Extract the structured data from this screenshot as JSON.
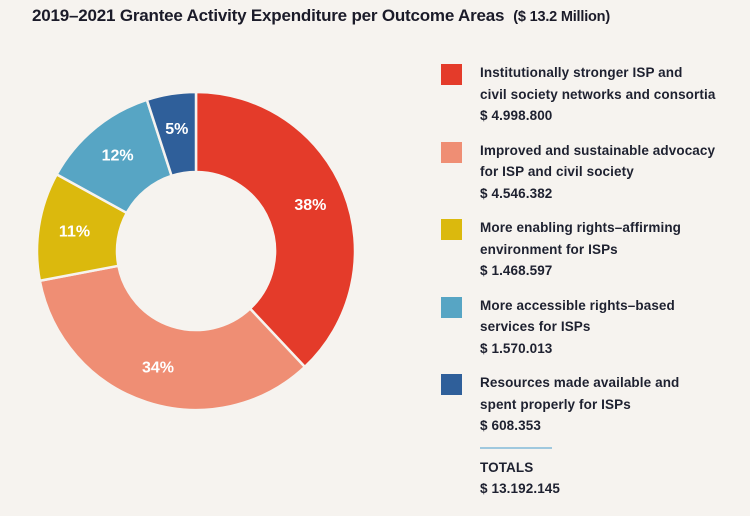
{
  "page": {
    "background_color": "#f6f3ef",
    "text_color": "#1b1b29"
  },
  "title": {
    "main": "2019–2021 Grantee Activity Expenditure per Outcome Areas",
    "note": "($ 13.2 Million)"
  },
  "chart_data": {
    "type": "pie",
    "variant": "donut",
    "title": "2019–2021 Grantee Activity Expenditure per Outcome Areas ($ 13.2 Million)",
    "direction": "clockwise",
    "start_angle_deg": 0,
    "inner_radius_ratio": 0.5,
    "slices": [
      {
        "label": "Institutionally stronger ISP and civil society networks and consortia",
        "amount": 4998800,
        "percent": 38,
        "color": "#e43b2a"
      },
      {
        "label": "Improved and sustainable advocacy for ISP and civil society",
        "amount": 4546382,
        "percent": 34,
        "color": "#ef8e74"
      },
      {
        "label": "More enabling rights–affirming environment for ISPs",
        "amount": 1468597,
        "percent": 11,
        "color": "#dbb90d"
      },
      {
        "label": "More accessible rights–based services for ISPs",
        "amount": 1570013,
        "percent": 12,
        "color": "#57a5c4"
      },
      {
        "label": "Resources made available and spent properly for ISPs",
        "amount": 608353,
        "percent": 5,
        "color": "#2f5f9a"
      }
    ],
    "total": 13192145,
    "gap_color": "#f6f3ef",
    "percent_label_color": "#ffffff"
  },
  "legend": {
    "divider_color": "#9fc8de",
    "items": [
      {
        "lines": [
          "Institutionally stronger ISP and",
          "civil society networks and consortia"
        ],
        "amount": "$ 4.998.800",
        "color": "#e43b2a"
      },
      {
        "lines": [
          "Improved and sustainable advocacy",
          "for ISP and civil society"
        ],
        "amount": "$ 4.546.382",
        "color": "#ef8e74"
      },
      {
        "lines": [
          "More enabling rights–affirming",
          "environment for ISPs"
        ],
        "amount": "$ 1.468.597",
        "color": "#dbb90d"
      },
      {
        "lines": [
          "More accessible rights–based",
          "services for ISPs"
        ],
        "amount": "$ 1.570.013",
        "color": "#57a5c4"
      },
      {
        "lines": [
          "Resources made available and",
          "spent properly for ISPs"
        ],
        "amount": "$ 608.353",
        "color": "#2f5f9a"
      }
    ],
    "totals": {
      "label": "TOTALS",
      "amount": "$ 13.192.145"
    }
  }
}
